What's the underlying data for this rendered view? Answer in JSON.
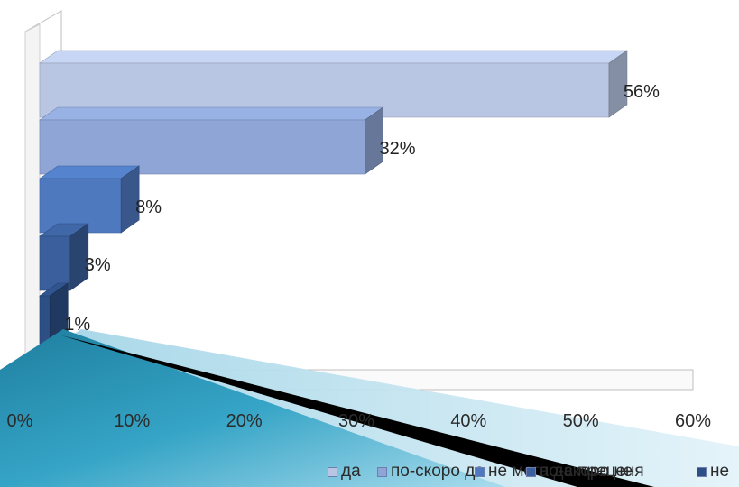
{
  "chart_data": {
    "type": "bar",
    "orientation": "horizontal",
    "style": "3d",
    "categories": [
      "да",
      "по-скоро да",
      "не мога да преценя",
      "по-скоро не",
      "не"
    ],
    "values": [
      56,
      32,
      8,
      3,
      1
    ],
    "data_labels": [
      "56%",
      "32%",
      "8%",
      "3%",
      "1%"
    ],
    "xlim": [
      0,
      60
    ],
    "x_ticks": [
      "0%",
      "10%",
      "20%",
      "30%",
      "40%",
      "50%",
      "60%"
    ],
    "grid": false,
    "legend_position": "bottom",
    "colors": [
      "#b9c6e3",
      "#8ea5d5",
      "#4f79bf",
      "#3b5f9c",
      "#2d4f86"
    ]
  },
  "legend": {
    "items": [
      {
        "label": "да",
        "color": "#b9c6e3"
      },
      {
        "label": "по-скоро да",
        "color": "#8ea5d5"
      },
      {
        "label": "не мога да преценя",
        "color": "#4f79bf"
      },
      {
        "label": "по-скоро не",
        "color": "#3b5f9c"
      },
      {
        "label": "не",
        "color": "#2d4f86"
      }
    ]
  }
}
